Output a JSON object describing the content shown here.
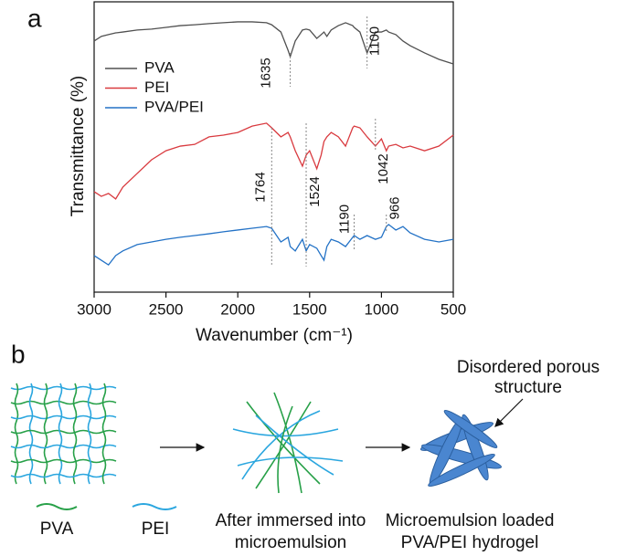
{
  "chart_data": {
    "type": "line",
    "panel_label": "a",
    "xlabel": "Wavenumber (cm⁻¹)",
    "ylabel": "Transmittance (%)",
    "xlim": [
      3000,
      500
    ],
    "xticks": [
      3000,
      2500,
      2000,
      1500,
      1000,
      500
    ],
    "ylim": [
      0,
      100
    ],
    "x": [
      3000,
      2950,
      2900,
      2850,
      2800,
      2700,
      2600,
      2500,
      2400,
      2300,
      2200,
      2100,
      2000,
      1900,
      1800,
      1764,
      1700,
      1650,
      1635,
      1600,
      1550,
      1524,
      1500,
      1450,
      1420,
      1400,
      1380,
      1350,
      1300,
      1250,
      1200,
      1190,
      1150,
      1100,
      1042,
      1000,
      966,
      950,
      900,
      850,
      800,
      700,
      600,
      500
    ],
    "series": [
      {
        "name": "PVA",
        "color": "#505050",
        "values": [
          86.5,
          88.1,
          88.7,
          89.3,
          89.6,
          90.3,
          90.6,
          91.2,
          91.8,
          92.1,
          92.5,
          92.8,
          93.1,
          93.1,
          92.8,
          92.1,
          89.6,
          83.3,
          81.1,
          86.5,
          90.3,
          90.6,
          90.3,
          87.4,
          88.7,
          89.6,
          88.1,
          90.3,
          91.8,
          92.8,
          91.8,
          91.2,
          89.6,
          82.4,
          89.6,
          89.6,
          90.3,
          89.6,
          88.7,
          86.5,
          84.9,
          82.4,
          80.2,
          78.6
        ]
      },
      {
        "name": "PEI",
        "color": "#d93a3f",
        "values": [
          34.6,
          33.0,
          34.0,
          32.1,
          36.2,
          40.9,
          45.6,
          48.7,
          50.3,
          50.9,
          53.5,
          54.1,
          55.0,
          57.2,
          58.2,
          56.6,
          53.5,
          55.0,
          53.5,
          48.7,
          43.4,
          47.2,
          48.7,
          42.5,
          47.2,
          51.9,
          53.5,
          55.0,
          53.5,
          50.3,
          56.6,
          57.2,
          56.6,
          53.5,
          50.3,
          52.8,
          48.7,
          50.3,
          50.9,
          49.7,
          50.3,
          48.7,
          50.3,
          54.1
        ]
      },
      {
        "name": "PVA/PEI",
        "color": "#2372c6",
        "values": [
          12.6,
          11.0,
          9.4,
          12.6,
          14.2,
          16.4,
          17.3,
          18.2,
          18.9,
          19.5,
          20.1,
          20.8,
          21.4,
          22.0,
          22.6,
          22.0,
          17.3,
          18.9,
          15.7,
          14.2,
          18.2,
          14.2,
          16.4,
          15.1,
          12.6,
          11.0,
          15.7,
          18.2,
          17.3,
          15.7,
          18.9,
          19.5,
          18.2,
          19.5,
          18.2,
          18.9,
          22.6,
          23.3,
          21.4,
          22.6,
          20.4,
          18.2,
          17.3,
          18.2
        ]
      }
    ],
    "peak_markers": [
      1635,
      1100,
      1764,
      1524,
      1042,
      1190,
      966
    ]
  },
  "diagram": {
    "panel_label": "b",
    "callout_lines": [
      "Disordered porous",
      "structure"
    ],
    "legend": [
      "PVA",
      "PEI"
    ],
    "step2_lines": [
      "After immersed into",
      "microemulsion"
    ],
    "step3_lines": [
      "Microemulsion loaded",
      "PVA/PEI hydrogel"
    ]
  }
}
